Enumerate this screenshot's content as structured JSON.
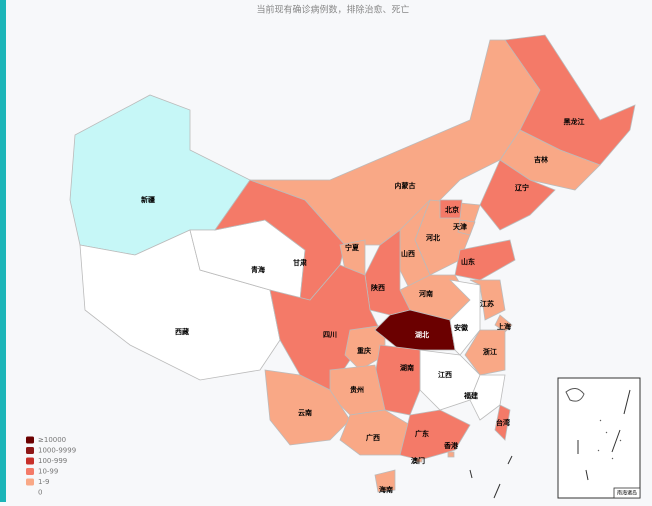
{
  "title": "当前现有确诊病例数，排除治愈、死亡",
  "legend": [
    {
      "label": "≥10000",
      "color": "#6b0000"
    },
    {
      "label": "1000-9999",
      "color": "#8e1717"
    },
    {
      "label": "100-999",
      "color": "#c7302a"
    },
    {
      "label": "10-99",
      "color": "#f47a68"
    },
    {
      "label": "1-9",
      "color": "#f9a886"
    },
    {
      "label": "0",
      "color": "#ffffff"
    }
  ],
  "regions": [
    {
      "name": "新疆",
      "color": "#c6f7f7"
    },
    {
      "name": "西藏",
      "color": "#ffffff"
    },
    {
      "name": "青海",
      "color": "#ffffff"
    },
    {
      "name": "甘肃",
      "color": "#f47a68"
    },
    {
      "name": "内蒙古",
      "color": "#f9a886"
    },
    {
      "name": "黑龙江",
      "color": "#f47a68"
    },
    {
      "name": "吉林",
      "color": "#f9a886"
    },
    {
      "name": "辽宁",
      "color": "#f47a68"
    },
    {
      "name": "河北",
      "color": "#f9a886"
    },
    {
      "name": "北京",
      "color": "#f47a68"
    },
    {
      "name": "天津",
      "color": "#f9a886"
    },
    {
      "name": "山西",
      "color": "#f9a886"
    },
    {
      "name": "山东",
      "color": "#f47a68"
    },
    {
      "name": "河南",
      "color": "#f9a886"
    },
    {
      "name": "陕西",
      "color": "#f47a68"
    },
    {
      "name": "宁夏",
      "color": "#f9a886"
    },
    {
      "name": "四川",
      "color": "#f47a68"
    },
    {
      "name": "重庆",
      "color": "#f9a886"
    },
    {
      "name": "湖北",
      "color": "#6b0000"
    },
    {
      "name": "安徽",
      "color": "#ffffff"
    },
    {
      "name": "江苏",
      "color": "#f9a886"
    },
    {
      "name": "上海",
      "color": "#f9a886"
    },
    {
      "name": "浙江",
      "color": "#f9a886"
    },
    {
      "name": "江西",
      "color": "#ffffff"
    },
    {
      "name": "福建",
      "color": "#ffffff"
    },
    {
      "name": "湖南",
      "color": "#f47a68"
    },
    {
      "name": "贵州",
      "color": "#f9a886"
    },
    {
      "name": "云南",
      "color": "#f9a886"
    },
    {
      "name": "广西",
      "color": "#f9a886"
    },
    {
      "name": "广东",
      "color": "#f47a68"
    },
    {
      "name": "台湾",
      "color": "#f47a68"
    },
    {
      "name": "海南",
      "color": "#f9a886"
    },
    {
      "name": "香港",
      "color": "#f9a886"
    },
    {
      "name": "澳门",
      "color": "#f9a886"
    }
  ],
  "inset_label": "南海诸岛"
}
